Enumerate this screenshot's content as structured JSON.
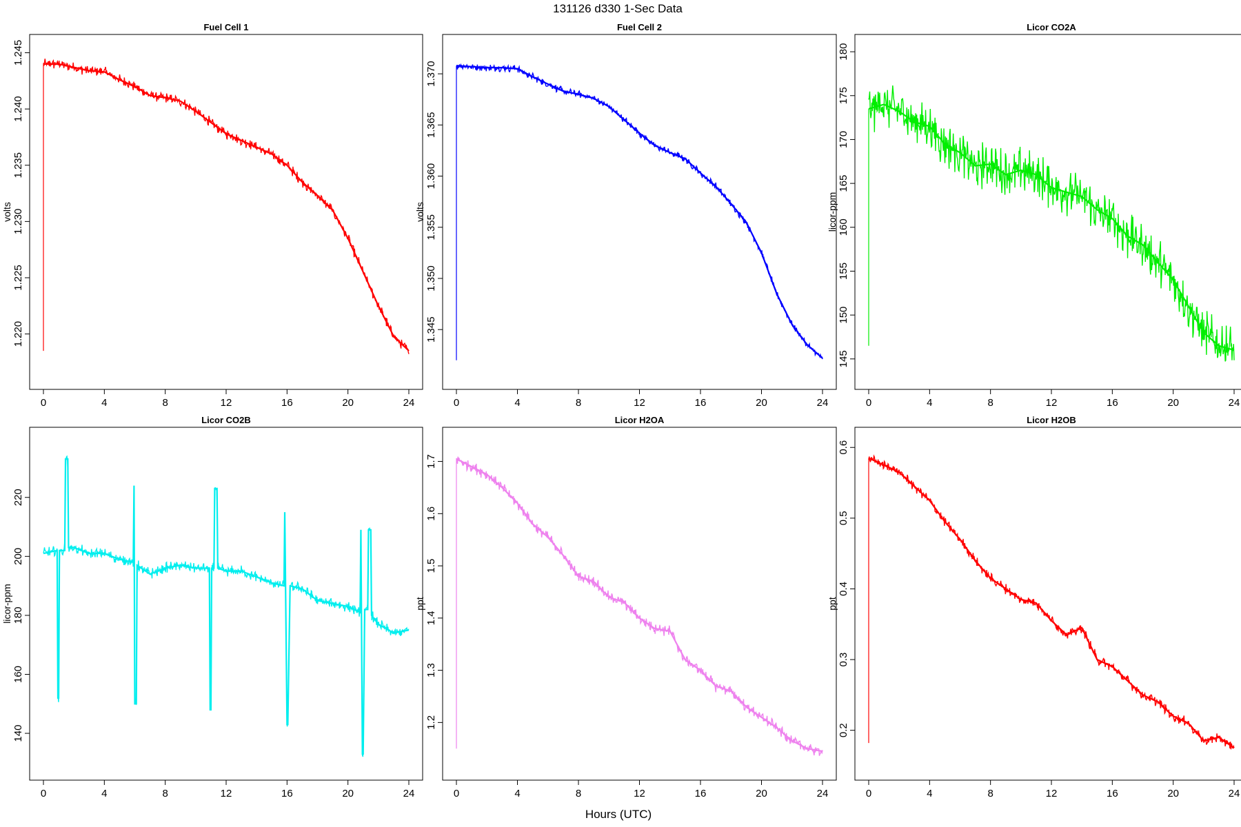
{
  "figure": {
    "title": "131126   d330   1-Sec Data",
    "xlabel": "Hours (UTC)"
  },
  "chart_data": [
    {
      "type": "line",
      "title": "Fuel Cell 1",
      "ylabel": "volts",
      "color": "#ff0000",
      "xlim": [
        0,
        24
      ],
      "xticks": [
        0,
        4,
        8,
        12,
        16,
        20,
        24
      ],
      "ylim": [
        1.2163,
        1.2454
      ],
      "yticks": [
        "1.220",
        "1.225",
        "1.230",
        "1.235",
        "1.240",
        "1.245"
      ],
      "noise": 0.0005,
      "spike": [
        0,
        1.2185
      ],
      "x": [
        0,
        1,
        2,
        3,
        4,
        5,
        6,
        7,
        8,
        9,
        10,
        11,
        12,
        13,
        14,
        15,
        16,
        17,
        18,
        19,
        20,
        21,
        22,
        23,
        24
      ],
      "y": [
        1.244,
        1.244,
        1.2437,
        1.2434,
        1.2433,
        1.2426,
        1.242,
        1.2412,
        1.241,
        1.2407,
        1.2398,
        1.2388,
        1.2378,
        1.2372,
        1.2366,
        1.236,
        1.235,
        1.2335,
        1.2323,
        1.231,
        1.2285,
        1.2255,
        1.2225,
        1.2198,
        1.2185
      ]
    },
    {
      "type": "line",
      "title": "Fuel Cell 2",
      "ylabel": "volts",
      "color": "#0000ff",
      "xlim": [
        0,
        24
      ],
      "xticks": [
        0,
        4,
        8,
        12,
        16,
        20,
        24
      ],
      "ylim": [
        1.3405,
        1.3725
      ],
      "yticks": [
        "1.345",
        "1.350",
        "1.355",
        "1.360",
        "1.365",
        "1.370"
      ],
      "noise": 0.0004,
      "spike": [
        0,
        1.342
      ],
      "x": [
        0,
        1,
        2,
        3,
        4,
        5,
        6,
        7,
        8,
        9,
        10,
        11,
        12,
        13,
        14,
        15,
        16,
        17,
        18,
        19,
        20,
        21,
        22,
        23,
        24
      ],
      "y": [
        1.3708,
        1.3707,
        1.3706,
        1.3706,
        1.3705,
        1.3697,
        1.369,
        1.3683,
        1.368,
        1.3676,
        1.3668,
        1.3655,
        1.3642,
        1.363,
        1.3623,
        1.3617,
        1.3603,
        1.359,
        1.3573,
        1.3555,
        1.3525,
        1.3485,
        1.3455,
        1.3435,
        1.3422
      ]
    },
    {
      "type": "line",
      "title": "Licor CO2A",
      "ylabel": "licor-ppm",
      "color": "#00ee00",
      "xlim": [
        0,
        24
      ],
      "xticks": [
        0,
        4,
        8,
        12,
        16,
        20,
        24
      ],
      "ylim": [
        143.1,
        180.4
      ],
      "yticks": [
        "145",
        "150",
        "155",
        "160",
        "165",
        "170",
        "175",
        "180"
      ],
      "noise": 3.0,
      "spike": [
        0,
        146.5
      ],
      "x": [
        0,
        1,
        2,
        3,
        4,
        5,
        6,
        7,
        8,
        9,
        10,
        11,
        12,
        13,
        14,
        15,
        16,
        17,
        18,
        19,
        20,
        21,
        22,
        23,
        24
      ],
      "y": [
        173.5,
        174.0,
        173.2,
        172.0,
        171.5,
        169.5,
        168.5,
        167.0,
        167.2,
        166.0,
        166.5,
        166.0,
        164.5,
        164.0,
        163.5,
        162.0,
        161.0,
        159.0,
        158.0,
        156.0,
        154.0,
        151.0,
        148.0,
        146.5,
        146.0
      ]
    },
    {
      "type": "line",
      "title": "Licor CO2B",
      "ylabel": "licor-ppm",
      "color": "#00eeee",
      "xlim": [
        0,
        24
      ],
      "xticks": [
        0,
        4,
        8,
        12,
        16,
        20,
        24
      ],
      "ylim": [
        128.8,
        239.1
      ],
      "yticks": [
        "140",
        "160",
        "180",
        "200",
        "220"
      ],
      "noise": 2.0,
      "x": [
        0,
        0.9,
        0.95,
        1.0,
        1.05,
        1.4,
        1.45,
        1.6,
        1.65,
        2,
        3,
        4,
        5,
        5.9,
        5.95,
        6.0,
        6.1,
        6.15,
        7,
        8,
        9,
        10,
        10.9,
        10.95,
        11.0,
        11.05,
        11.2,
        11.25,
        11.4,
        11.45,
        12,
        13,
        14,
        15,
        15.8,
        15.85,
        16.0,
        16.05,
        16.2,
        17,
        18,
        19,
        20,
        20.8,
        20.85,
        20.95,
        21.0,
        21.1,
        21.3,
        21.35,
        21.5,
        21.55,
        22,
        23,
        24
      ],
      "y": [
        201,
        202,
        152,
        152,
        202,
        202,
        233,
        233,
        203,
        203,
        201,
        201,
        199,
        198,
        224,
        150,
        150,
        197,
        194,
        196,
        197,
        196,
        196,
        148,
        148,
        196,
        196,
        223,
        223,
        196,
        195,
        195,
        193,
        191,
        190,
        215,
        143,
        143,
        190,
        189,
        185,
        184,
        183,
        181,
        209,
        133,
        133,
        182,
        182,
        209,
        209,
        180,
        177,
        174,
        175
      ]
    },
    {
      "type": "line",
      "title": "Licor H2OA",
      "ylabel": "ppt",
      "color": "#ee82ee",
      "xlim": [
        0,
        24
      ],
      "xticks": [
        0,
        4,
        8,
        12,
        16,
        20,
        24
      ],
      "ylim": [
        1.116,
        1.739
      ],
      "yticks": [
        "1.2",
        "1.3",
        "1.4",
        "1.5",
        "1.6",
        "1.7"
      ],
      "noise": 0.012,
      "spike": [
        0,
        1.15
      ],
      "x": [
        0,
        1,
        2,
        3,
        4,
        5,
        6,
        7,
        8,
        9,
        10,
        11,
        12,
        13,
        14,
        15,
        16,
        17,
        18,
        19,
        20,
        21,
        22,
        23,
        24
      ],
      "y": [
        1.705,
        1.69,
        1.675,
        1.65,
        1.62,
        1.58,
        1.555,
        1.52,
        1.48,
        1.47,
        1.44,
        1.43,
        1.4,
        1.38,
        1.375,
        1.32,
        1.3,
        1.27,
        1.26,
        1.23,
        1.21,
        1.19,
        1.165,
        1.15,
        1.145
      ]
    },
    {
      "type": "line",
      "title": "Licor H2OB",
      "ylabel": "ppt",
      "color": "#ff0000",
      "xlim": [
        0,
        24
      ],
      "xticks": [
        0,
        4,
        8,
        12,
        16,
        20,
        24
      ],
      "ylim": [
        0.149,
        0.609
      ],
      "yticks": [
        "0.2",
        "0.3",
        "0.4",
        "0.5",
        "0.6"
      ],
      "noise": 0.008,
      "spike": [
        0,
        0.182
      ],
      "x": [
        0,
        1,
        2,
        3,
        4,
        5,
        6,
        7,
        8,
        9,
        10,
        11,
        12,
        13,
        14,
        15,
        16,
        17,
        18,
        19,
        20,
        21,
        22,
        23,
        24
      ],
      "y": [
        0.585,
        0.575,
        0.565,
        0.545,
        0.525,
        0.495,
        0.47,
        0.44,
        0.415,
        0.4,
        0.385,
        0.38,
        0.355,
        0.335,
        0.345,
        0.3,
        0.29,
        0.27,
        0.25,
        0.24,
        0.22,
        0.21,
        0.185,
        0.19,
        0.175
      ]
    }
  ]
}
